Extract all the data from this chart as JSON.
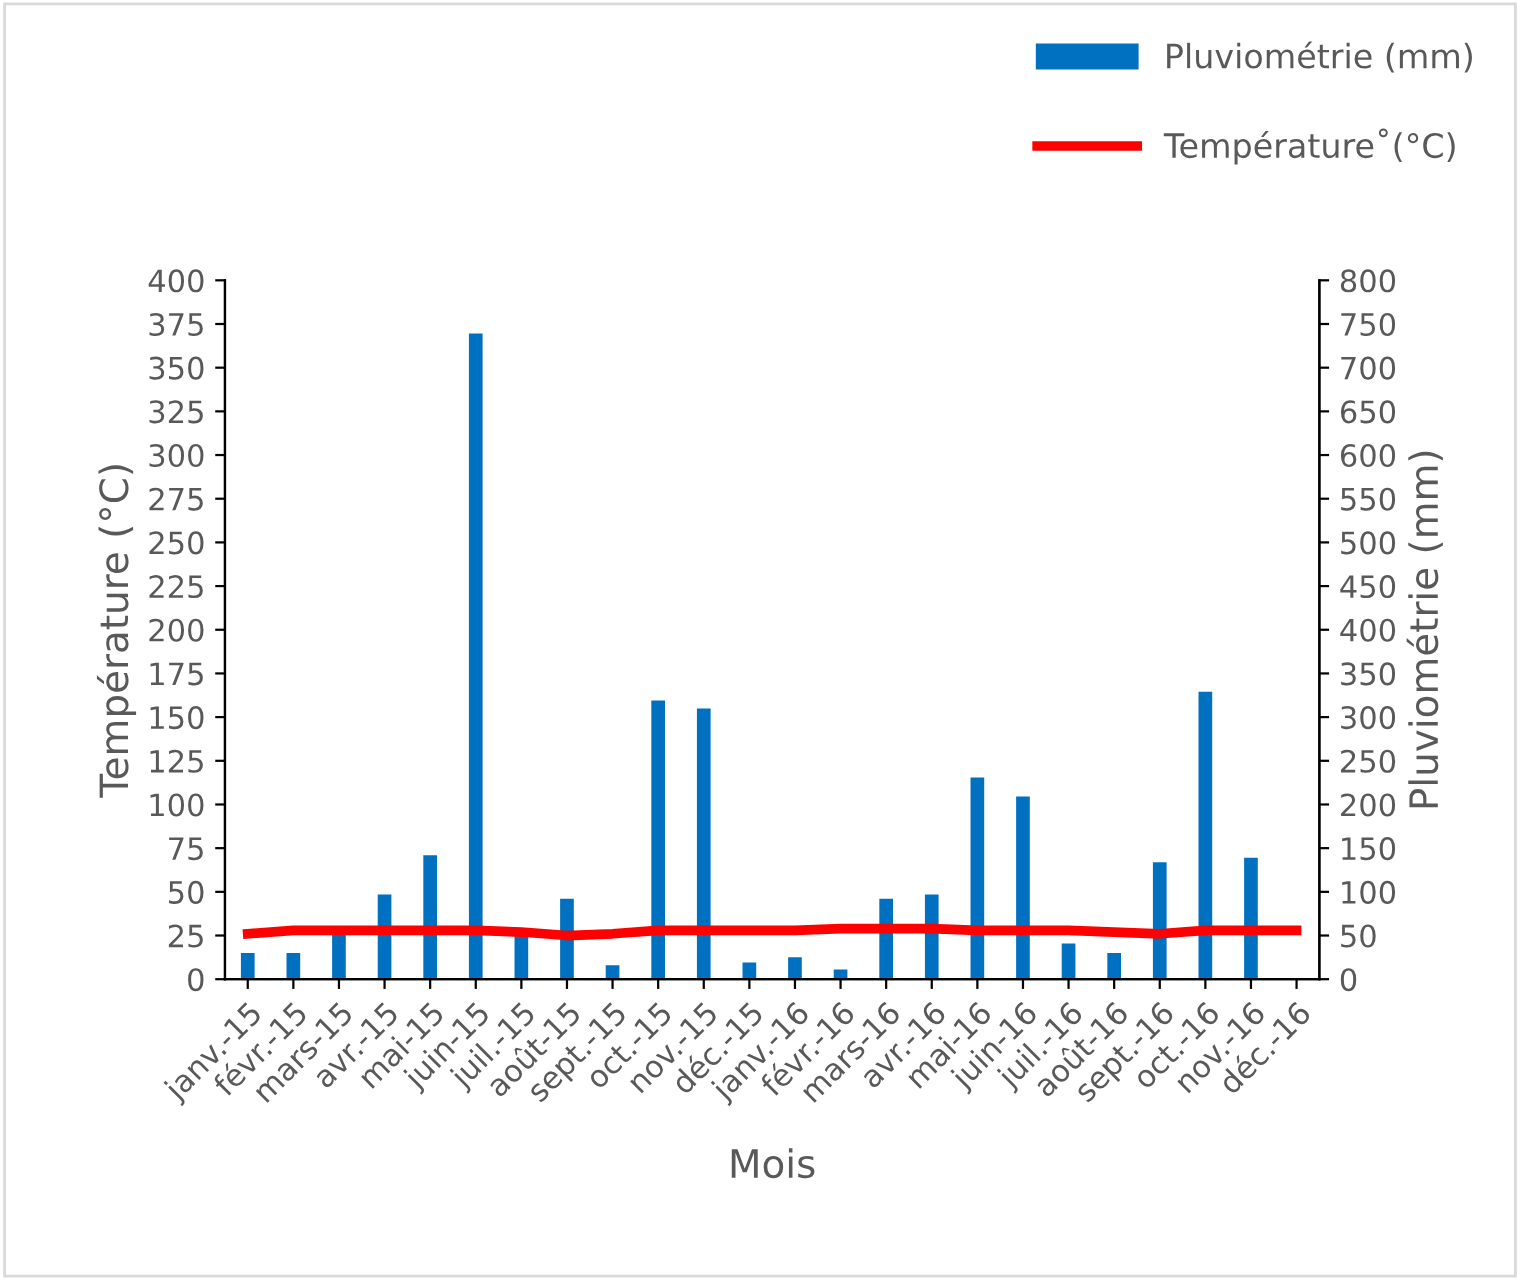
{
  "chart_data": {
    "type": "bar",
    "xlabel": "Mois",
    "ylabel": "Température (°C)",
    "y2label": "Pluviométrie (mm)",
    "categories": [
      "janv.-15",
      "févr.-15",
      "mars-15",
      "avr.-15",
      "mai-15",
      "juin-15",
      "juil.-15",
      "août-15",
      "sept.-15",
      "oct.-15",
      "nov.-15",
      "déc.-15",
      "janv.-16",
      "févr.-16",
      "mars-16",
      "avr.-16",
      "mai-16",
      "juin-16",
      "juil.-16",
      "août-16",
      "sept.-16",
      "oct.-16",
      "nov.-16",
      "déc.-16"
    ],
    "series": [
      {
        "name": "Pluviométrie (mm)",
        "axis": "y2",
        "color": "#0070c0",
        "values": [
          30,
          30,
          55,
          97,
          142,
          739,
          52,
          92,
          16,
          319,
          310,
          19,
          25,
          11,
          92,
          97,
          231,
          209,
          41,
          30,
          134,
          329,
          139,
          null
        ]
      },
      {
        "name": "Température˚(°C)",
        "type": "line",
        "color": "#ff0000",
        "values": [
          26,
          28,
          28,
          28,
          28,
          28,
          27,
          25,
          26,
          28,
          28,
          28,
          28,
          29,
          29,
          29,
          28,
          28,
          28,
          27,
          26,
          28,
          28,
          28
        ]
      }
    ],
    "ylim": [
      0,
      400
    ],
    "yticks": [
      0,
      25,
      50,
      75,
      100,
      125,
      150,
      175,
      200,
      225,
      250,
      275,
      300,
      325,
      350,
      375,
      400
    ],
    "y2lim": [
      0,
      800
    ],
    "y2ticks": [
      0,
      50,
      100,
      150,
      200,
      250,
      300,
      350,
      400,
      450,
      500,
      550,
      600,
      650,
      700,
      750,
      800
    ],
    "grid": false,
    "legend": "top right",
    "marker": "none",
    "line_style": "solid"
  }
}
